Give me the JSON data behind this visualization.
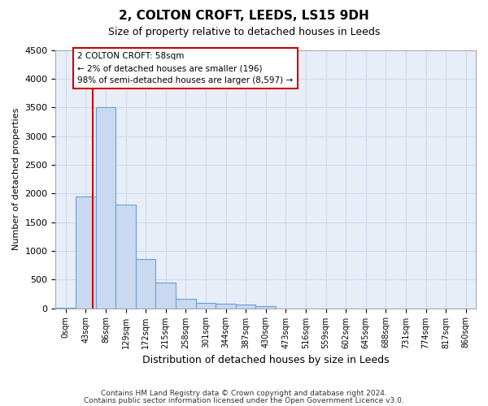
{
  "title": "2, COLTON CROFT, LEEDS, LS15 9DH",
  "subtitle": "Size of property relative to detached houses in Leeds",
  "xlabel": "Distribution of detached houses by size in Leeds",
  "ylabel": "Number of detached properties",
  "bin_labels": [
    "0sqm",
    "43sqm",
    "86sqm",
    "129sqm",
    "172sqm",
    "215sqm",
    "258sqm",
    "301sqm",
    "344sqm",
    "387sqm",
    "430sqm",
    "473sqm",
    "516sqm",
    "559sqm",
    "602sqm",
    "645sqm",
    "688sqm",
    "731sqm",
    "774sqm",
    "817sqm",
    "860sqm"
  ],
  "bar_values": [
    5,
    1950,
    3500,
    1800,
    850,
    450,
    160,
    100,
    75,
    60,
    40,
    0,
    0,
    0,
    0,
    0,
    0,
    0,
    0,
    0,
    0
  ],
  "bar_color": "#c9d9f0",
  "bar_edge_color": "#6a9fd8",
  "property_line_x": 1.35,
  "annotation_text": "2 COLTON CROFT: 58sqm\n← 2% of detached houses are smaller (196)\n98% of semi-detached houses are larger (8,597) →",
  "annotation_box_color": "#ffffff",
  "annotation_box_edge": "#cc0000",
  "property_line_color": "#cc0000",
  "ylim": [
    0,
    4500
  ],
  "yticks": [
    0,
    500,
    1000,
    1500,
    2000,
    2500,
    3000,
    3500,
    4000,
    4500
  ],
  "grid_color": "#d0d8e8",
  "bg_color": "#e8eef8",
  "footer1": "Contains HM Land Registry data © Crown copyright and database right 2024.",
  "footer2": "Contains public sector information licensed under the Open Government Licence v3.0."
}
